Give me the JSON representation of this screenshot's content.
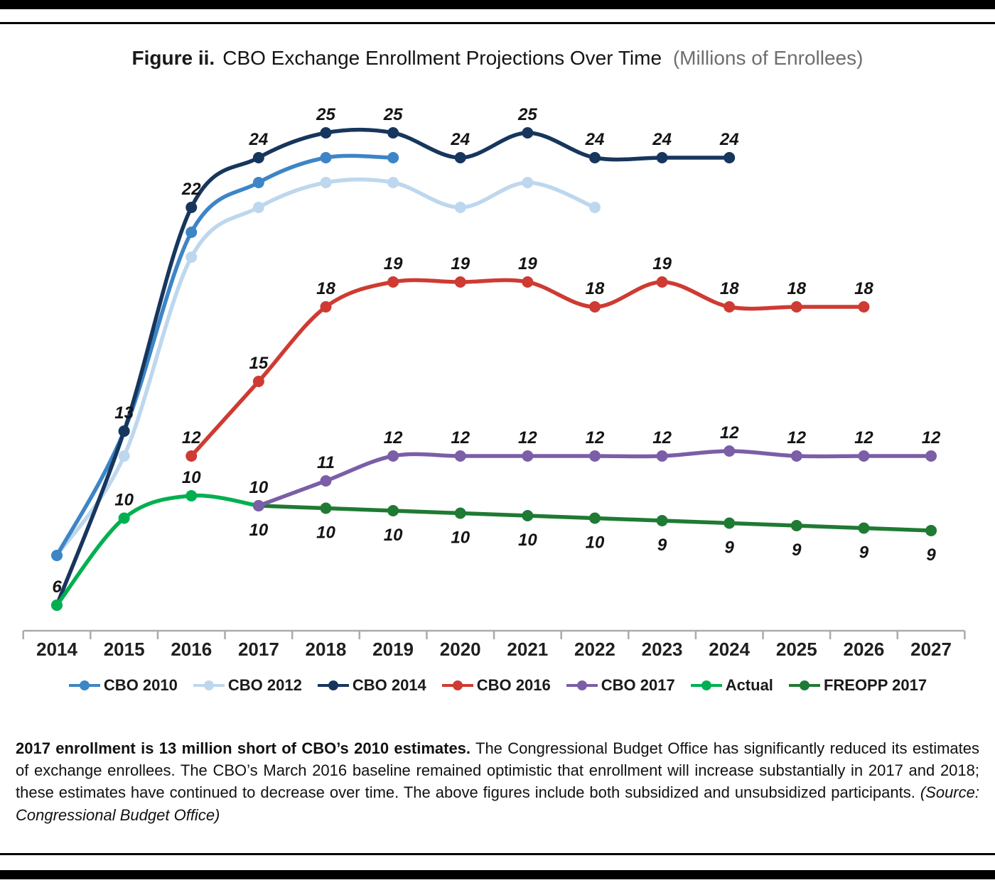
{
  "title": {
    "figure_label": "Figure ii.",
    "main": "CBO Exchange Enrollment Projections Over Time",
    "units": "(Millions of Enrollees)"
  },
  "chart_data": {
    "type": "line",
    "title": "CBO Exchange Enrollment Projections Over Time",
    "subtitle": "Millions of Enrollees",
    "xlabel": "",
    "ylabel": "Millions of Enrollees",
    "ylim": [
      5,
      27
    ],
    "grid": false,
    "y_axis_hidden": true,
    "legend_position": "bottom",
    "smoothed_lines": true,
    "categories": [
      "2014",
      "2015",
      "2016",
      "2017",
      "2018",
      "2019",
      "2020",
      "2021",
      "2022",
      "2023",
      "2024",
      "2025",
      "2026",
      "2027"
    ],
    "series": [
      {
        "name": "CBO 2010",
        "color": "#3D85C6",
        "label_side": "above",
        "values": [
          8,
          13,
          21,
          23,
          24,
          24,
          null,
          null,
          null,
          null,
          null,
          null,
          null,
          null
        ],
        "labels": [
          null,
          null,
          null,
          null,
          null,
          null,
          null,
          null,
          null,
          null,
          null,
          null,
          null,
          null
        ]
      },
      {
        "name": "CBO 2012",
        "color": "#BDD7EE",
        "label_side": "above",
        "values": [
          8,
          12,
          20,
          22,
          23,
          23,
          22,
          23,
          22,
          null,
          null,
          null,
          null,
          null
        ],
        "labels": [
          null,
          null,
          null,
          null,
          null,
          null,
          null,
          null,
          null,
          null,
          null,
          null,
          null,
          null
        ]
      },
      {
        "name": "CBO 2014",
        "color": "#17365D",
        "label_side": "above",
        "values": [
          6,
          13,
          22,
          24,
          25,
          25,
          24,
          25,
          24,
          24,
          24,
          null,
          null,
          null
        ],
        "labels": [
          null,
          "13",
          "22",
          "24",
          "25",
          "25",
          "24",
          "25",
          "24",
          "24",
          "24",
          null,
          null,
          null
        ]
      },
      {
        "name": "CBO 2016",
        "color": "#CE3B32",
        "label_side": "above",
        "values": [
          null,
          null,
          12,
          15,
          18,
          19,
          19,
          19,
          18,
          19,
          18,
          18,
          18,
          null
        ],
        "labels": [
          null,
          null,
          "12",
          "15",
          "18",
          "19",
          "19",
          "19",
          "18",
          "19",
          "18",
          "18",
          "18",
          null
        ]
      },
      {
        "name": "CBO 2017",
        "color": "#7B5EA7",
        "label_side": "above",
        "values": [
          null,
          null,
          null,
          10,
          11,
          12,
          12,
          12,
          12,
          12,
          12.2,
          12,
          12,
          12
        ],
        "labels": [
          null,
          null,
          null,
          "10",
          "11",
          "12",
          "12",
          "12",
          "12",
          "12",
          "12",
          "12",
          "12",
          "12"
        ]
      },
      {
        "name": "Actual",
        "color": "#00B050",
        "label_side": "above",
        "values": [
          6,
          9.5,
          10.4,
          10,
          null,
          null,
          null,
          null,
          null,
          null,
          null,
          null,
          null,
          null
        ],
        "labels": [
          "6",
          "10",
          "10",
          null,
          null,
          null,
          null,
          null,
          null,
          null,
          null,
          null,
          null,
          null
        ]
      },
      {
        "name": "FREOPP 2017",
        "color": "#1F7A33",
        "label_side": "below",
        "values": [
          null,
          null,
          null,
          10,
          9.9,
          9.8,
          9.7,
          9.6,
          9.5,
          9.4,
          9.3,
          9.2,
          9.1,
          9
        ],
        "labels": [
          null,
          null,
          null,
          "10",
          "10",
          "10",
          "10",
          "10",
          "10",
          "9",
          "9",
          "9",
          "9",
          "9"
        ]
      }
    ]
  },
  "caption": {
    "lead": "2017 enrollment is 13 million short of CBO’s 2010 estimates.",
    "body": "The Congressional Budget Office has significantly reduced its estimates of exchange enrollees. The CBO’s March 2016 baseline remained optimistic that enrollment will increase substantially in 2017 and 2018; these estimates have continued to decrease over time. The above figures include both subsidized and unsubsidized participants.",
    "source": "(Source: Congressional Budget Office)"
  }
}
